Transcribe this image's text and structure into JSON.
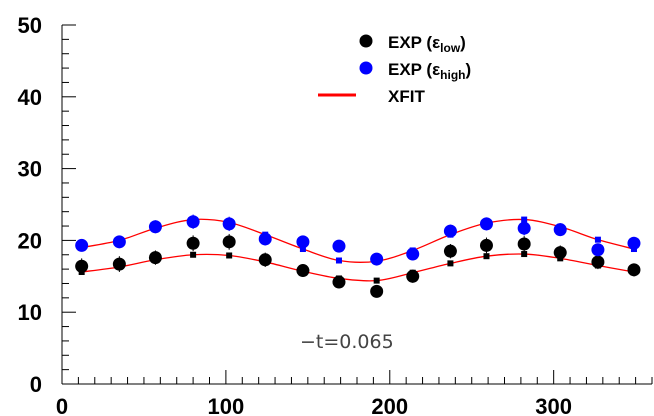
{
  "chart_data": {
    "type": "scatter",
    "xlim": [
      0,
      360
    ],
    "ylim": [
      0,
      50
    ],
    "x_ticks": [
      "0",
      "100",
      "200",
      "300"
    ],
    "y_ticks": [
      "0",
      "10",
      "20",
      "30",
      "40",
      "50"
    ],
    "grid": false,
    "legend_position": "top-right",
    "legend": {
      "exp_low": {
        "prefix": "EXP (",
        "greek": "ε",
        "sub": "low",
        "suffix": ")"
      },
      "exp_high": {
        "prefix": "EXP (",
        "greek": "ε",
        "sub": "high",
        "suffix": ")"
      },
      "xfit": "XFIT"
    },
    "annotation": "−t=0.065",
    "colors": {
      "exp_low": "#000000",
      "exp_high": "#0000ff",
      "xfit": "#ff0000"
    },
    "series": [
      {
        "key": "exp_low",
        "kind": "points",
        "x": [
          12,
          35,
          57,
          80,
          102,
          124,
          147,
          169,
          192,
          214,
          237,
          259,
          282,
          304,
          327,
          349
        ],
        "y": [
          16.4,
          16.7,
          17.6,
          19.6,
          19.8,
          17.3,
          15.8,
          14.2,
          12.9,
          15.0,
          18.5,
          19.3,
          19.5,
          18.3,
          17.0,
          15.9
        ],
        "err": [
          1.1,
          1.1,
          1.0,
          1.1,
          1.1,
          1.0,
          0.9,
          0.8,
          0.8,
          0.9,
          1.0,
          1.1,
          1.1,
          1.0,
          1.0,
          0.9
        ]
      },
      {
        "key": "exp_high",
        "kind": "points",
        "x": [
          12,
          35,
          57,
          80,
          102,
          124,
          147,
          169,
          192,
          214,
          237,
          259,
          282,
          304,
          327,
          349
        ],
        "y": [
          19.3,
          19.8,
          21.9,
          22.6,
          22.3,
          20.2,
          19.8,
          19.2,
          17.4,
          18.1,
          21.3,
          22.3,
          21.7,
          21.5,
          18.7,
          19.6
        ],
        "err": [
          0.8,
          0.8,
          0.9,
          1.0,
          1.0,
          0.9,
          0.8,
          0.8,
          0.8,
          0.8,
          0.9,
          0.9,
          1.0,
          0.9,
          0.8,
          0.8
        ]
      },
      {
        "key": "xfit_low",
        "kind": "fit",
        "x": [
          12,
          35,
          57,
          80,
          102,
          124,
          147,
          169,
          192,
          214,
          237,
          259,
          282,
          304,
          327,
          349
        ],
        "y": [
          15.6,
          16.3,
          17.3,
          18.0,
          17.9,
          17.0,
          15.7,
          14.7,
          14.4,
          15.5,
          16.8,
          17.8,
          18.1,
          17.5,
          16.5,
          15.6
        ]
      },
      {
        "key": "xfit_high",
        "kind": "fit",
        "x": [
          12,
          35,
          57,
          80,
          102,
          124,
          147,
          169,
          192,
          214,
          237,
          259,
          282,
          304,
          327,
          349
        ],
        "y": [
          19.0,
          20.0,
          21.7,
          22.9,
          22.5,
          20.8,
          18.8,
          17.2,
          17.1,
          18.6,
          20.8,
          22.4,
          22.9,
          21.9,
          20.1,
          18.8
        ]
      }
    ]
  }
}
